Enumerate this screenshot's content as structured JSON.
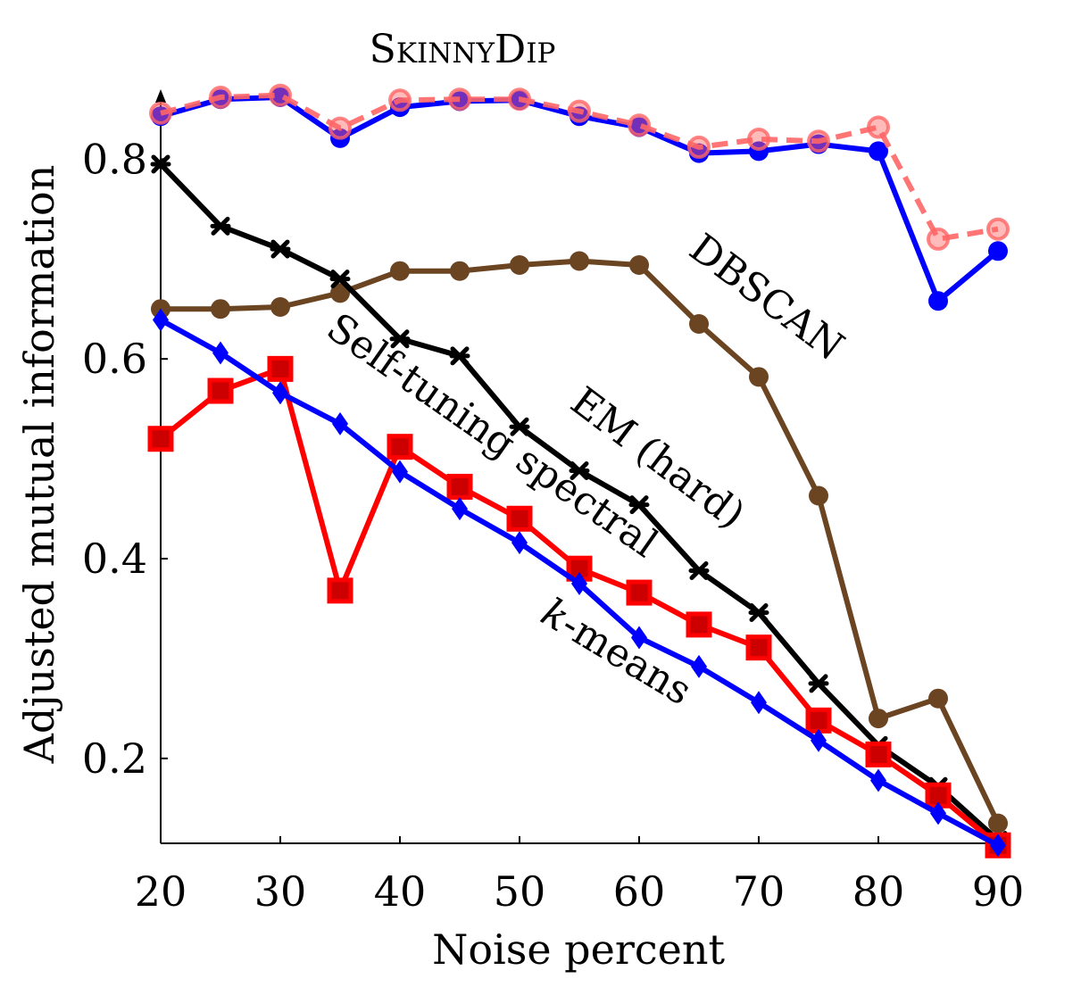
{
  "chart_data": {
    "type": "line",
    "title": "SkinnyDip",
    "xlabel": "Noise percent",
    "ylabel": "Adjusted mutual information",
    "x": [
      20,
      25,
      30,
      35,
      40,
      45,
      50,
      55,
      60,
      65,
      70,
      75,
      80,
      85,
      90
    ],
    "xlim": [
      20,
      90
    ],
    "ylim": [
      0.115,
      0.87
    ],
    "x_ticks": [
      20,
      30,
      40,
      50,
      60,
      70,
      80,
      90
    ],
    "y_ticks": [
      0.2,
      0.4,
      0.6,
      0.8
    ],
    "y_tick_labels": [
      "0.2",
      "0.4",
      "0.6",
      "0.8"
    ],
    "grid": false,
    "series": [
      {
        "name": "SkinnyDip",
        "color": "#0000ff",
        "marker": "circle",
        "values": [
          0.843,
          0.86,
          0.862,
          0.821,
          0.852,
          0.858,
          0.859,
          0.843,
          0.832,
          0.806,
          0.808,
          0.815,
          0.808,
          0.658,
          0.708
        ]
      },
      {
        "name": "",
        "color": "#ff6666",
        "style": "dashed",
        "marker": "circle-faded",
        "values": [
          0.846,
          0.862,
          0.864,
          0.831,
          0.859,
          0.86,
          0.86,
          0.848,
          0.834,
          0.812,
          0.82,
          0.818,
          0.832,
          0.72,
          0.73
        ]
      },
      {
        "name": "DBSCAN",
        "color": "#6b4422",
        "marker": "circle",
        "values": [
          0.65,
          0.65,
          0.652,
          0.666,
          0.688,
          0.688,
          0.694,
          0.698,
          0.694,
          0.635,
          0.582,
          0.463,
          0.24,
          0.26,
          0.135
        ]
      },
      {
        "name": "EM (hard)",
        "color": "#000000",
        "marker": "cross",
        "values": [
          0.795,
          0.733,
          0.71,
          0.68,
          0.62,
          0.603,
          0.532,
          0.488,
          0.454,
          0.388,
          0.346,
          0.275,
          0.213,
          0.172,
          0.118
        ]
      },
      {
        "name": "Self-tuning spectral",
        "color": "#ff0000",
        "marker": "square",
        "values": [
          0.52,
          0.568,
          0.59,
          0.368,
          0.512,
          0.472,
          0.44,
          0.39,
          0.366,
          0.334,
          0.311,
          0.238,
          0.204,
          0.163,
          0.113
        ]
      },
      {
        "name": "k-means",
        "color": "#0000ff",
        "marker": "diamond",
        "values": [
          0.639,
          0.606,
          0.566,
          0.535,
          0.487,
          0.45,
          0.416,
          0.375,
          0.321,
          0.292,
          0.256,
          0.218,
          0.178,
          0.145,
          0.113
        ]
      }
    ],
    "annotations": [
      {
        "text": "SkinnyDip",
        "series": 0
      },
      {
        "text": "DBSCAN",
        "series": 2
      },
      {
        "text": "EM (hard)",
        "series": 3
      },
      {
        "text": "Self-tuning spectral",
        "series": 4
      },
      {
        "text": "k",
        "suffix": "-means",
        "series": 5
      }
    ]
  }
}
